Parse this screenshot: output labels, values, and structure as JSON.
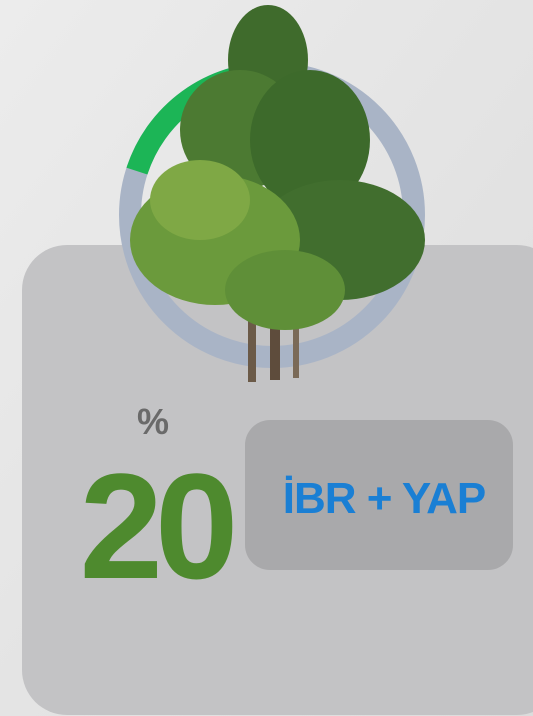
{
  "progress": {
    "symbol": "%",
    "value": 20
  },
  "label": "İBR + YAP"
}
